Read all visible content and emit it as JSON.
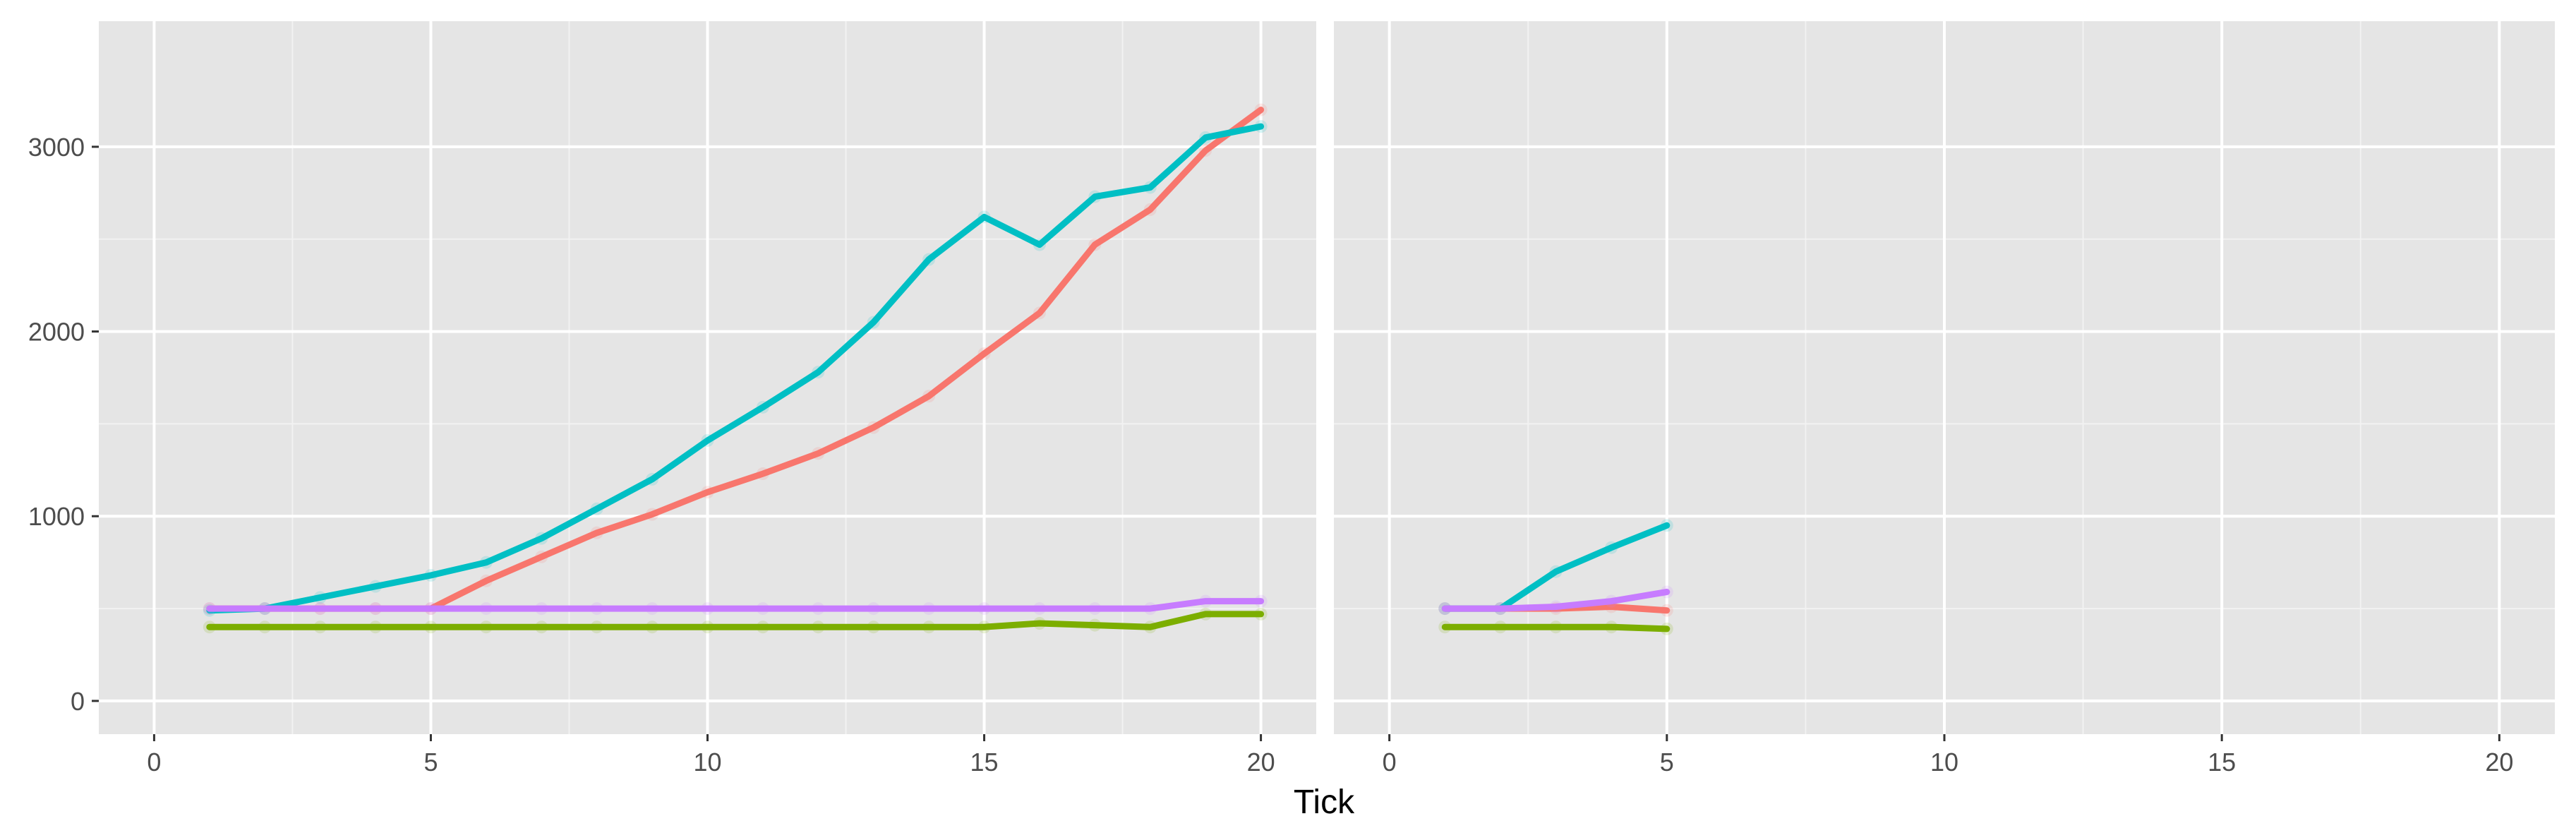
{
  "chart_data": {
    "type": "line",
    "xlabel": "Tick",
    "ylabel": "",
    "xlim": [
      -1,
      21
    ],
    "ylim": [
      -180,
      3680
    ],
    "x_ticks": [
      0,
      5,
      10,
      15,
      20
    ],
    "y_ticks": [
      0,
      1000,
      2000,
      3000
    ],
    "x_tick_labels": [
      "0",
      "5",
      "10",
      "15",
      "20"
    ],
    "y_tick_labels": [
      "0",
      "1000",
      "2000",
      "3000"
    ],
    "grid": true,
    "legend": "none",
    "panels": [
      {
        "series": [
          {
            "color": "#f8766d",
            "x": [
              1,
              2,
              3,
              4,
              5,
              6,
              7,
              8,
              9,
              10,
              11,
              12,
              13,
              14,
              15,
              16,
              17,
              18,
              19,
              20
            ],
            "values": [
              500,
              500,
              500,
              500,
              500,
              650,
              780,
              910,
              1010,
              1130,
              1230,
              1340,
              1480,
              1650,
              1880,
              2100,
              2470,
              2660,
              2980,
              3200
            ]
          },
          {
            "color": "#00bfc4",
            "x": [
              1,
              2,
              3,
              4,
              5,
              6,
              7,
              8,
              9,
              10,
              11,
              12,
              13,
              14,
              15,
              16,
              17,
              18,
              19,
              20
            ],
            "values": [
              490,
              500,
              560,
              620,
              680,
              750,
              880,
              1040,
              1200,
              1410,
              1590,
              1780,
              2050,
              2390,
              2620,
              2470,
              2730,
              2780,
              3050,
              3110
            ]
          },
          {
            "color": "#7cae00",
            "x": [
              1,
              2,
              3,
              4,
              5,
              6,
              7,
              8,
              9,
              10,
              11,
              12,
              13,
              14,
              15,
              16,
              17,
              18,
              19,
              20
            ],
            "values": [
              400,
              400,
              400,
              400,
              400,
              400,
              400,
              400,
              400,
              400,
              400,
              400,
              400,
              400,
              400,
              420,
              410,
              400,
              470,
              470
            ]
          },
          {
            "color": "#c77cff",
            "x": [
              1,
              2,
              3,
              4,
              5,
              6,
              7,
              8,
              9,
              10,
              11,
              12,
              13,
              14,
              15,
              16,
              17,
              18,
              19,
              20
            ],
            "values": [
              500,
              500,
              500,
              500,
              500,
              500,
              500,
              500,
              500,
              500,
              500,
              500,
              500,
              500,
              500,
              500,
              500,
              500,
              540,
              540
            ]
          }
        ]
      },
      {
        "series": [
          {
            "color": "#f8766d",
            "x": [
              1,
              2,
              3,
              4,
              5
            ],
            "values": [
              500,
              500,
              500,
              510,
              490
            ]
          },
          {
            "color": "#00bfc4",
            "x": [
              1,
              2,
              3,
              4,
              5
            ],
            "values": [
              500,
              500,
              700,
              830,
              950
            ]
          },
          {
            "color": "#7cae00",
            "x": [
              1,
              2,
              3,
              4,
              5
            ],
            "values": [
              400,
              400,
              400,
              400,
              390
            ]
          },
          {
            "color": "#c77cff",
            "x": [
              1,
              2,
              3,
              4,
              5
            ],
            "values": [
              500,
              500,
              510,
              540,
              590
            ]
          }
        ]
      }
    ]
  }
}
